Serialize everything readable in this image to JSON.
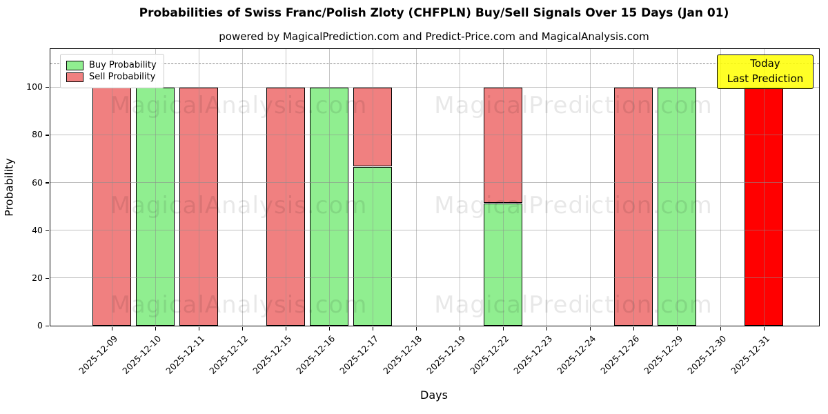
{
  "title": "Probabilities of Swiss Franc/Polish Zloty (CHFPLN) Buy/Sell Signals Over 15 Days (Jan 01)",
  "subtitle": "powered by MagicalPrediction.com and Predict-Price.com and MagicalAnalysis.com",
  "axes": {
    "x_label": "Days",
    "y_label": "Probability"
  },
  "legend": {
    "items": [
      {
        "label": "Buy Probability",
        "color": "#90ee90"
      },
      {
        "label": "Sell Probability",
        "color": "#f08080"
      }
    ]
  },
  "annotation_box": {
    "line1": "Today",
    "line2": "Last Prediction",
    "bg_color": "#ffff00"
  },
  "watermarks": {
    "text_left": "MagicalAnalysis.com",
    "text_right": "MagicalPrediction.com"
  },
  "chart_data": {
    "type": "bar",
    "stacked": true,
    "title": "Probabilities of Swiss Franc/Polish Zloty (CHFPLN) Buy/Sell Signals Over 15 Days (Jan 01)",
    "xlabel": "Days",
    "ylabel": "Probability",
    "ylim": [
      0,
      116
    ],
    "y_ticks": [
      0,
      20,
      40,
      60,
      80,
      100
    ],
    "grid": true,
    "legend_position": "upper left",
    "dashed_line_y": 110,
    "categories": [
      "2025-12-09",
      "2025-12-10",
      "2025-12-11",
      "2025-12-12",
      "2025-12-15",
      "2025-12-16",
      "2025-12-17",
      "2025-12-18",
      "2025-12-19",
      "2025-12-22",
      "2025-12-23",
      "2025-12-24",
      "2025-12-26",
      "2025-12-29",
      "2025-12-30",
      "2025-12-31"
    ],
    "series": [
      {
        "name": "Buy Probability",
        "color": "#90ee90",
        "values": [
          0,
          100,
          0,
          0,
          0,
          100,
          66.7,
          0,
          0,
          51.4,
          0,
          0,
          0,
          100,
          0,
          0
        ]
      },
      {
        "name": "Sell Probability",
        "color": "#f08080",
        "values": [
          100,
          0,
          100,
          0,
          100,
          0,
          33.3,
          0,
          0,
          48.6,
          0,
          0,
          100,
          0,
          0,
          100
        ]
      }
    ],
    "today_index": 15,
    "today_color": "#ff0000"
  }
}
